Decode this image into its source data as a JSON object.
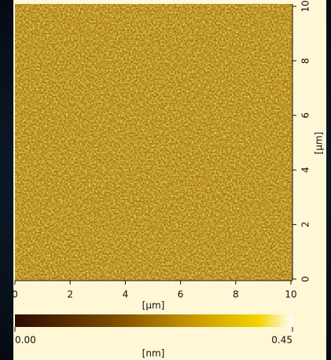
{
  "chart_data": {
    "type": "image",
    "xlim": [
      0,
      10
    ],
    "xticks": [
      0,
      2,
      4,
      6,
      8,
      10
    ],
    "xlabel": "[μm]",
    "ylim": [
      0,
      10
    ],
    "yticks": [
      0,
      2,
      4,
      6,
      8,
      10
    ],
    "ylabel": "[μm]",
    "colorbar": {
      "lim": [
        0,
        0.45
      ],
      "ticks": [
        {
          "value": 0,
          "label": "0.00"
        },
        {
          "value": 0.45,
          "label": "0.45"
        }
      ],
      "label": "[nm]"
    }
  }
}
